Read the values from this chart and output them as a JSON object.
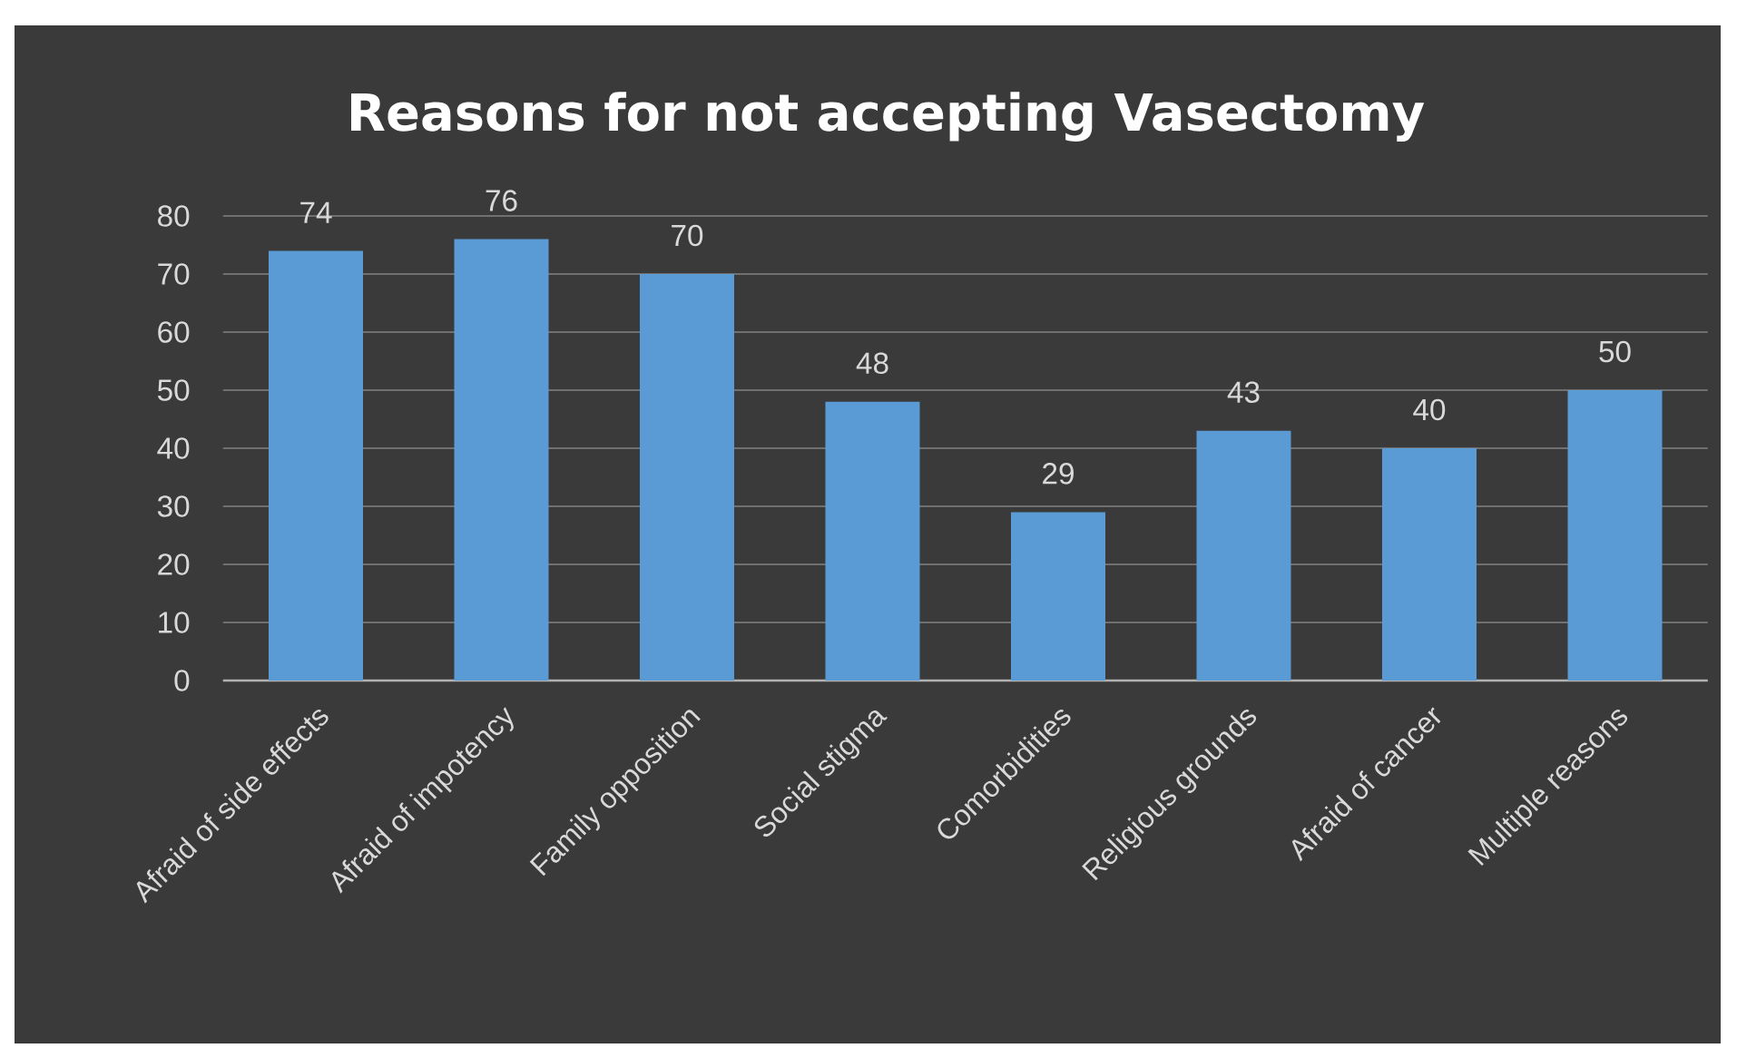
{
  "chart_data": {
    "type": "bar",
    "title": "Reasons for not accepting Vasectomy",
    "categories": [
      "Afraid of side effects",
      "Afraid of impotency",
      "Family opposition",
      "Social stigma",
      "Comorbidities",
      "Religious grounds",
      "Afraid of cancer",
      "Multiple reasons"
    ],
    "values": [
      74,
      76,
      70,
      48,
      29,
      43,
      40,
      50
    ],
    "color": "#5b9bd5",
    "ylim": [
      0,
      80
    ],
    "yticks": [
      0,
      10,
      20,
      30,
      40,
      50,
      60,
      70,
      80
    ],
    "grid": "y",
    "data_labels": true
  }
}
